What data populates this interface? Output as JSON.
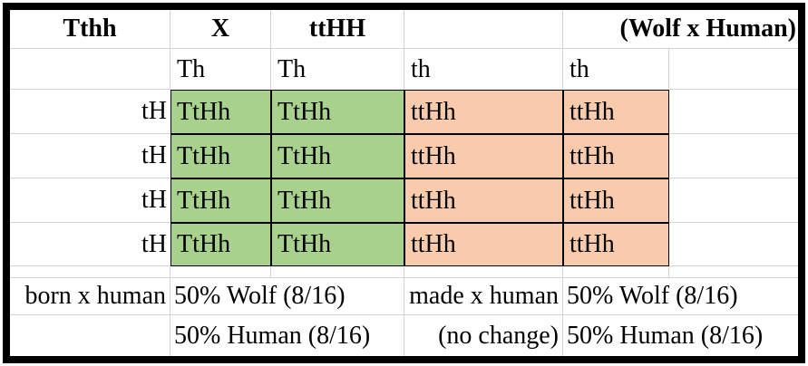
{
  "title_row": {
    "parent1": "Tthh",
    "cross_symbol": "X",
    "parent2": "ttHH",
    "annotation": "(Wolf x Human)"
  },
  "punnett": {
    "col_gametes": [
      "Th",
      "Th",
      "th",
      "th"
    ],
    "row_gametes": [
      "tH",
      "tH",
      "tH",
      "tH"
    ],
    "cells": [
      [
        "TtHh",
        "TtHh",
        "ttHh",
        "ttHh"
      ],
      [
        "TtHh",
        "TtHh",
        "ttHh",
        "ttHh"
      ],
      [
        "TtHh",
        "TtHh",
        "ttHh",
        "ttHh"
      ],
      [
        "TtHh",
        "TtHh",
        "ttHh",
        "ttHh"
      ]
    ]
  },
  "results": {
    "left": {
      "label": "born x human",
      "line1": "50% Wolf (8/16)",
      "line2": "50% Human (8/16)"
    },
    "right": {
      "label": "made x human",
      "sublabel": "(no change)",
      "line1": "50% Wolf (8/16)",
      "line2": "50% Human (8/16)"
    }
  },
  "colors": {
    "wolf_fill": "#a9d18e",
    "human_fill": "#f8cbad",
    "gridline": "#d4d4d4",
    "frame": "#000000"
  }
}
